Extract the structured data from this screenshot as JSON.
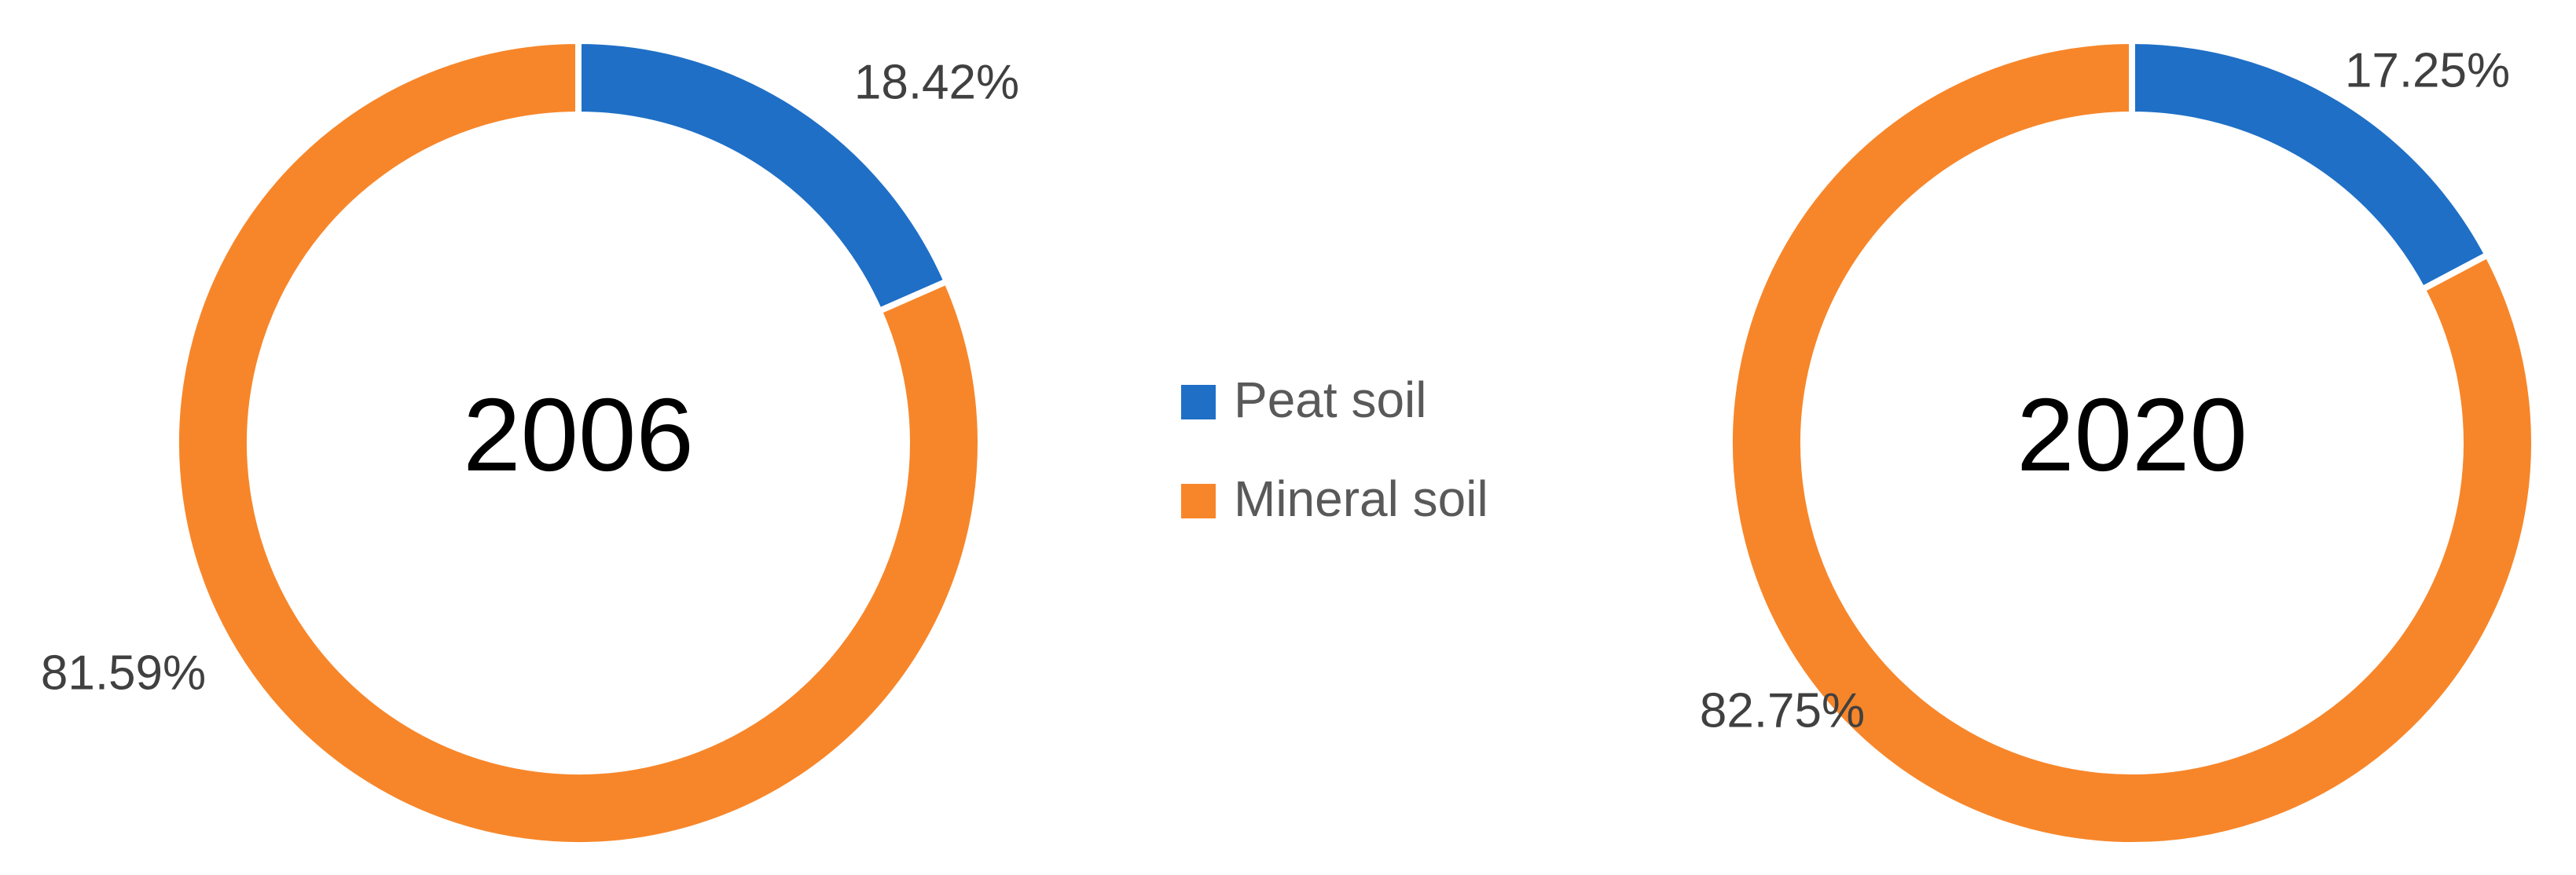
{
  "chart_data": [
    {
      "type": "pie",
      "donut": true,
      "title": "2006",
      "categories": [
        "Peat soil",
        "Mineral soil"
      ],
      "colors": [
        "#1f6fc6",
        "#f7862a"
      ],
      "values": [
        18.42,
        81.59
      ],
      "value_labels": [
        "18.42%",
        "81.59%"
      ]
    },
    {
      "type": "pie",
      "donut": true,
      "title": "2020",
      "categories": [
        "Peat soil",
        "Mineral soil"
      ],
      "colors": [
        "#1f6fc6",
        "#f7862a"
      ],
      "values": [
        17.25,
        82.75
      ],
      "value_labels": [
        "17.25%",
        "82.75%"
      ]
    }
  ]
}
